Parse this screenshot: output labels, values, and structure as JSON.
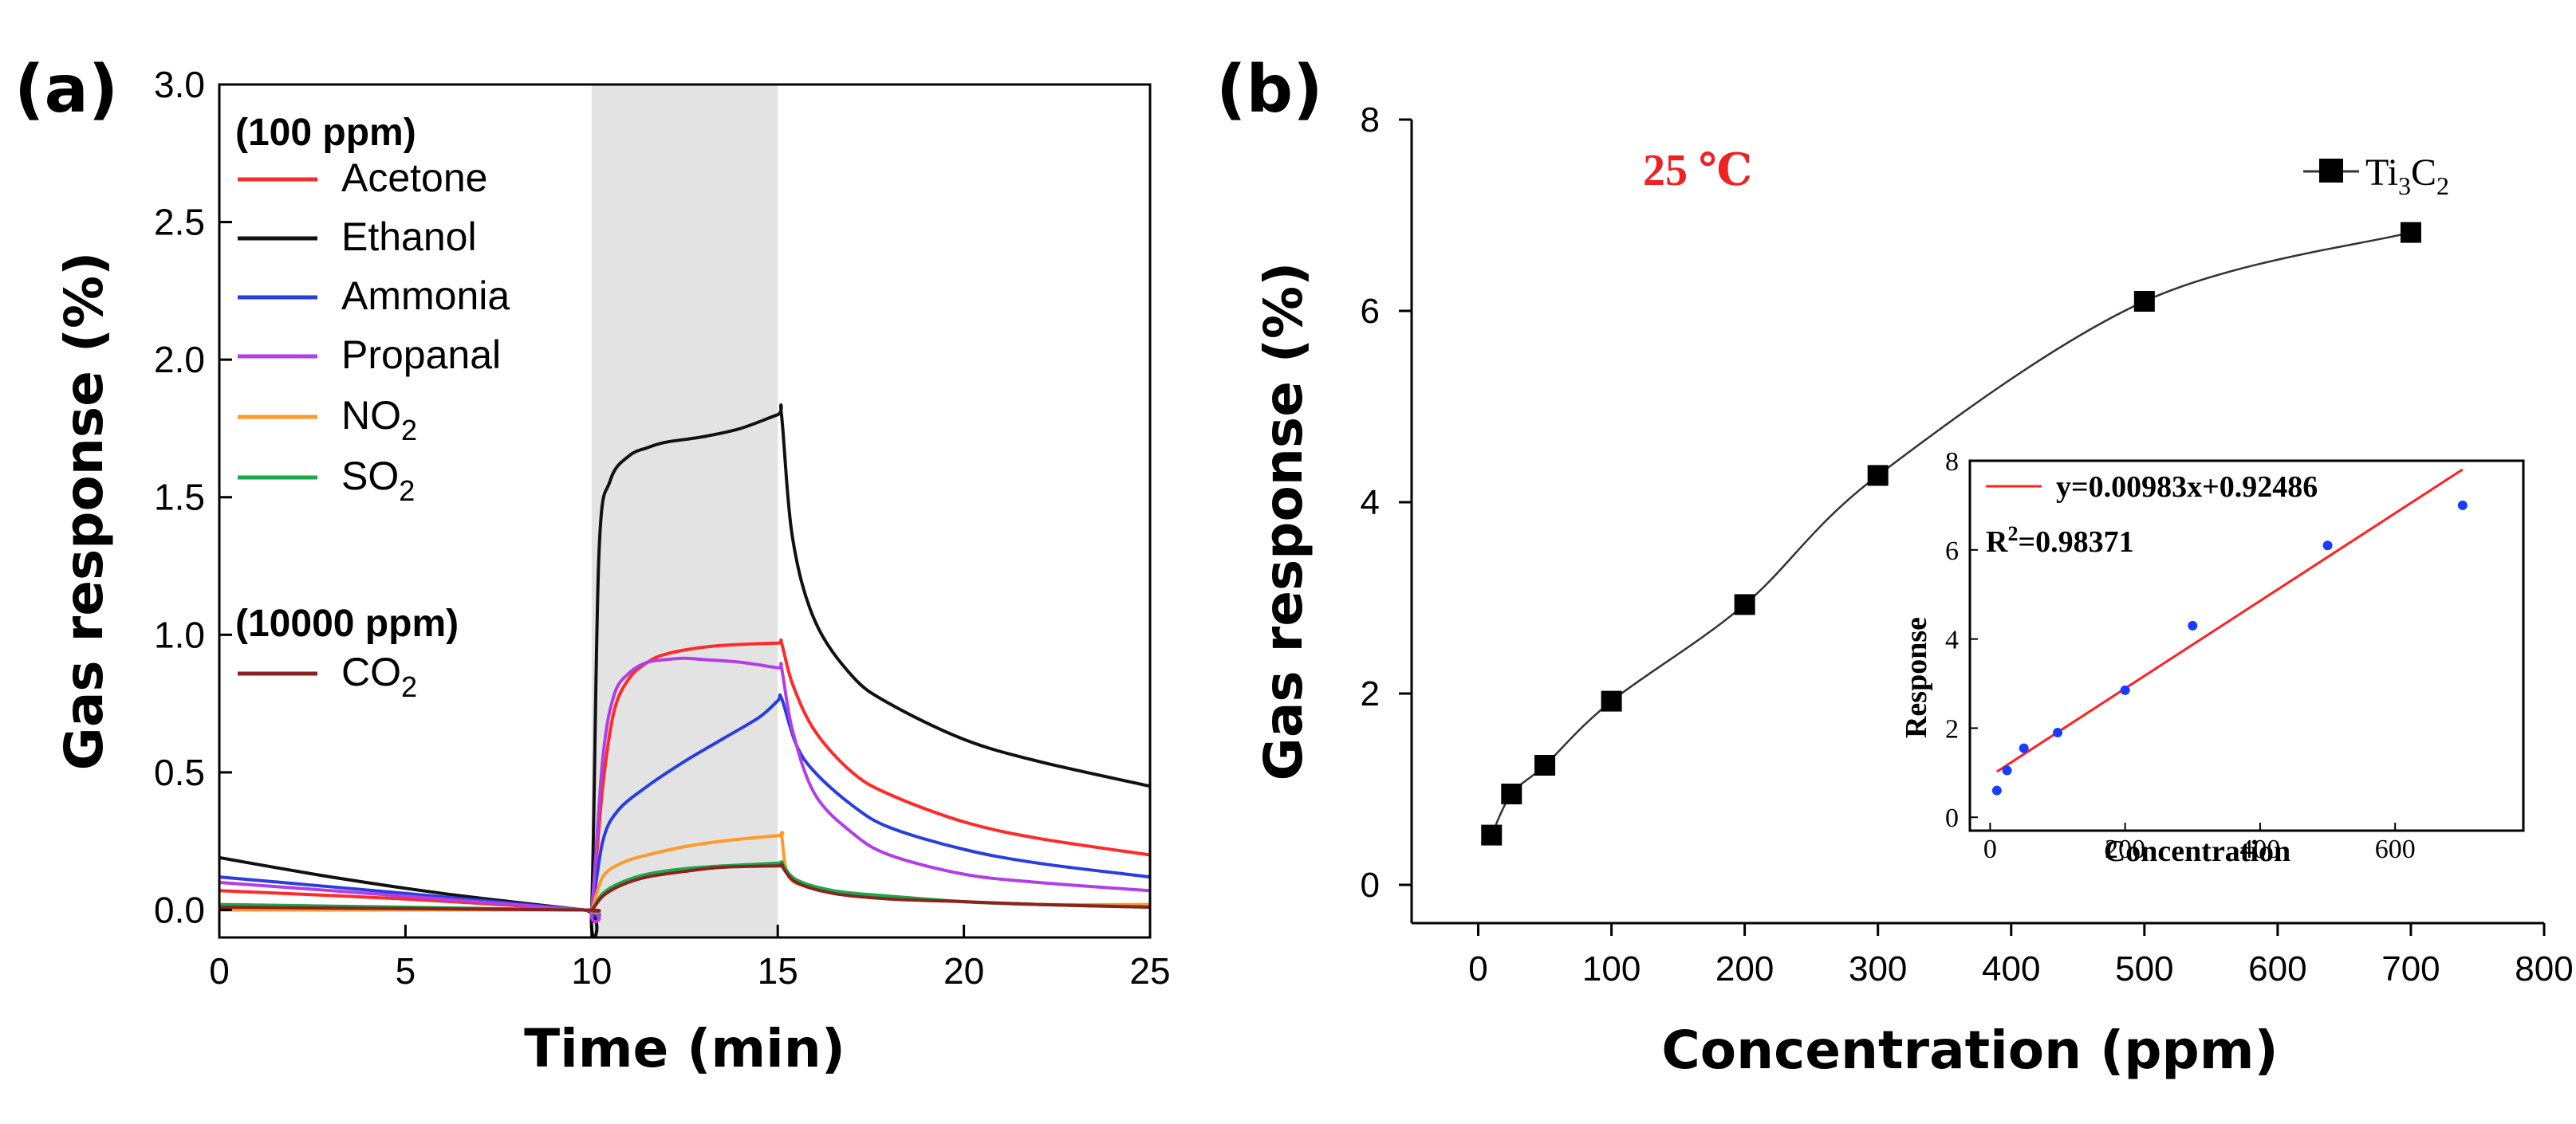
{
  "panel_a": {
    "label": "(a)",
    "legend_header_1": "(100 ppm)",
    "legend_header_2": "(10000 ppm)",
    "chart_data": {
      "type": "line",
      "title": "",
      "xlabel": "Time (min)",
      "ylabel": "Gas response (%)",
      "xlim": [
        0,
        25
      ],
      "ylim": [
        -0.1,
        3.0
      ],
      "xticks": [
        "0",
        "5",
        "10",
        "15",
        "20",
        "25"
      ],
      "yticks": [
        "0.0",
        "0.5",
        "1.0",
        "1.5",
        "2.0",
        "2.5",
        "3.0"
      ],
      "shaded_region": [
        10,
        15
      ],
      "series": [
        {
          "name": "Acetone",
          "sub": "",
          "color": "#ff2a2a",
          "x": [
            0,
            5,
            9.8,
            10,
            10.3,
            10.6,
            11,
            11.5,
            12,
            13,
            14,
            15,
            15.1,
            15.4,
            16,
            17,
            18,
            20,
            22,
            25
          ],
          "y": [
            0.07,
            0.04,
            0.0,
            0.0,
            0.45,
            0.72,
            0.84,
            0.9,
            0.93,
            0.955,
            0.965,
            0.97,
            0.97,
            0.82,
            0.65,
            0.5,
            0.42,
            0.32,
            0.26,
            0.2
          ]
        },
        {
          "name": "Ethanol",
          "sub": "",
          "color": "#111111",
          "x": [
            0,
            3,
            6,
            9.8,
            10,
            10.2,
            10.5,
            11,
            11.5,
            12,
            13,
            14,
            15,
            15.1,
            15.4,
            16,
            17,
            18,
            20,
            22,
            25
          ],
          "y": [
            0.19,
            0.12,
            0.06,
            0.0,
            0.0,
            1.3,
            1.56,
            1.65,
            1.68,
            1.7,
            1.72,
            1.75,
            1.8,
            1.8,
            1.35,
            1.05,
            0.85,
            0.75,
            0.62,
            0.54,
            0.45
          ]
        },
        {
          "name": "Ammonia",
          "sub": "",
          "color": "#2a3ee0",
          "x": [
            0,
            5,
            9.8,
            10,
            10.3,
            10.7,
            11.5,
            12.5,
            13.5,
            14.5,
            15,
            15.1,
            15.5,
            16,
            17,
            18,
            20,
            22,
            25
          ],
          "y": [
            0.12,
            0.06,
            0.0,
            0.0,
            0.25,
            0.36,
            0.45,
            0.54,
            0.62,
            0.7,
            0.76,
            0.77,
            0.6,
            0.5,
            0.38,
            0.3,
            0.22,
            0.17,
            0.12
          ]
        },
        {
          "name": "Propanal",
          "sub": "",
          "color": "#b23ee8",
          "x": [
            0,
            5,
            9.8,
            10,
            10.3,
            10.6,
            11,
            11.5,
            12,
            12.5,
            13,
            14,
            15,
            15.1,
            15.4,
            16,
            17,
            18,
            20,
            22,
            25
          ],
          "y": [
            0.1,
            0.05,
            0.0,
            0.0,
            0.55,
            0.78,
            0.86,
            0.9,
            0.91,
            0.915,
            0.91,
            0.9,
            0.88,
            0.88,
            0.65,
            0.42,
            0.28,
            0.2,
            0.13,
            0.1,
            0.07
          ]
        },
        {
          "name": "NO",
          "sub": "2",
          "color": "#ff9a2a",
          "x": [
            0,
            5,
            9.8,
            10,
            10.3,
            10.8,
            11.5,
            12.5,
            13.5,
            15,
            15.1,
            15.3,
            16,
            17,
            18,
            20,
            22,
            25
          ],
          "y": [
            0.0,
            0.0,
            0.0,
            0.0,
            0.12,
            0.17,
            0.2,
            0.23,
            0.25,
            0.27,
            0.27,
            0.12,
            0.08,
            0.06,
            0.05,
            0.03,
            0.02,
            0.02
          ]
        },
        {
          "name": "SO",
          "sub": "2",
          "color": "#1aa84a",
          "x": [
            0,
            5,
            9.8,
            10,
            10.3,
            10.8,
            11.5,
            12.5,
            13.5,
            15,
            15.1,
            15.5,
            16.5,
            18,
            20,
            22,
            25
          ],
          "y": [
            0.02,
            0.01,
            0.0,
            0.0,
            0.06,
            0.1,
            0.13,
            0.15,
            0.16,
            0.17,
            0.17,
            0.11,
            0.07,
            0.05,
            0.03,
            0.02,
            0.01
          ]
        },
        {
          "name": "CO",
          "sub": "2",
          "color": "#8b2222",
          "x": [
            0,
            5,
            9.8,
            10,
            10.3,
            10.8,
            11.5,
            12.5,
            13.5,
            15,
            15.1,
            15.5,
            16.5,
            18,
            20,
            22,
            25
          ],
          "y": [
            0.01,
            0.005,
            0.0,
            0.0,
            0.05,
            0.09,
            0.12,
            0.14,
            0.155,
            0.16,
            0.16,
            0.1,
            0.06,
            0.04,
            0.03,
            0.02,
            0.01
          ]
        }
      ]
    }
  },
  "panel_b": {
    "label": "(b)",
    "temperature_label": "25 ℃",
    "temperature_color": "#ee2222",
    "legend_label_main": "Ti",
    "legend_sub_1": "3",
    "legend_letter": "C",
    "legend_sub_2": "2",
    "chart_data": {
      "type": "line",
      "title": "",
      "xlabel": "Concentration (ppm)",
      "ylabel": "Gas response (%)",
      "xlim": [
        -50,
        800
      ],
      "ylim": [
        -0.4,
        8
      ],
      "xticks": [
        "0",
        "100",
        "200",
        "300",
        "400",
        "500",
        "600",
        "700",
        "800"
      ],
      "yticks": [
        "0",
        "2",
        "4",
        "6",
        "8"
      ],
      "series": [
        {
          "name": "Ti3C2",
          "color": "#000000",
          "x": [
            10,
            25,
            50,
            100,
            200,
            300,
            500,
            700
          ],
          "y": [
            0.52,
            0.95,
            1.25,
            1.92,
            2.93,
            4.28,
            6.1,
            6.82
          ]
        }
      ]
    },
    "inset": {
      "fit_label": "y=0.00983x+0.92486",
      "r2_prefix": "R",
      "r2_sup": "2",
      "r2_value": "=0.98371",
      "fit_color": "#ff2020",
      "point_color": "#1a3cff",
      "chart_data": {
        "type": "scatter",
        "xlabel": "Concentration",
        "ylabel": "Response",
        "xlim": [
          -30,
          790
        ],
        "ylim": [
          -0.3,
          8
        ],
        "xticks": [
          "0",
          "200",
          "400",
          "600"
        ],
        "yticks": [
          "0",
          "2",
          "4",
          "6",
          "8"
        ],
        "fit": {
          "slope": 0.00983,
          "intercept": 0.92486,
          "x_range": [
            10,
            700
          ]
        },
        "points": {
          "x": [
            10,
            25,
            50,
            100,
            200,
            300,
            500,
            700
          ],
          "y": [
            0.6,
            1.05,
            1.55,
            1.9,
            2.85,
            4.3,
            6.1,
            7.0
          ]
        }
      }
    }
  }
}
